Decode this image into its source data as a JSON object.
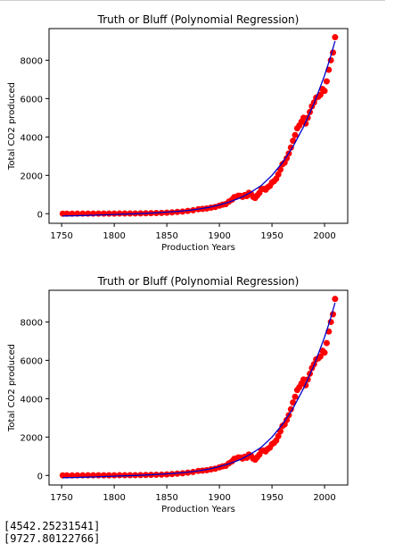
{
  "chart_data": [
    {
      "type": "scatter",
      "title": "Truth or Bluff (Polynomial Regression)",
      "xlabel": "Production Years",
      "ylabel": "Total CO2 produced",
      "xlim": [
        1738,
        2022
      ],
      "ylim": [
        -500,
        9650
      ],
      "xticks": [
        1750,
        1800,
        1850,
        1900,
        1950,
        2000
      ],
      "yticks": [
        0,
        2000,
        4000,
        6000,
        8000
      ],
      "grid": false,
      "series": [
        {
          "kind": "points",
          "color": "#ff0000",
          "x": [
            1751,
            1755,
            1760,
            1765,
            1770,
            1775,
            1780,
            1785,
            1790,
            1795,
            1800,
            1805,
            1810,
            1815,
            1820,
            1825,
            1830,
            1835,
            1840,
            1845,
            1850,
            1855,
            1860,
            1865,
            1870,
            1875,
            1880,
            1884,
            1888,
            1892,
            1896,
            1900,
            1903,
            1906,
            1909,
            1912,
            1914,
            1916,
            1918,
            1920,
            1922,
            1924,
            1926,
            1928,
            1930,
            1932,
            1934,
            1936,
            1938,
            1940,
            1942,
            1944,
            1946,
            1948,
            1950,
            1952,
            1954,
            1956,
            1958,
            1960,
            1962,
            1964,
            1966,
            1968,
            1970,
            1972,
            1974,
            1976,
            1978,
            1980,
            1982,
            1984,
            1986,
            1988,
            1990,
            1992,
            1994,
            1996,
            1998,
            2000,
            2002,
            2004,
            2006,
            2008,
            2010
          ],
          "y": [
            3,
            3,
            3,
            4,
            4,
            5,
            5,
            6,
            7,
            8,
            8,
            10,
            11,
            13,
            15,
            19,
            24,
            28,
            33,
            42,
            54,
            69,
            92,
            111,
            147,
            179,
            236,
            252,
            275,
            315,
            350,
            420,
            470,
            500,
            630,
            730,
            860,
            880,
            940,
            930,
            880,
            970,
            920,
            1090,
            1030,
            880,
            820,
            950,
            1080,
            1280,
            1300,
            1250,
            1380,
            1450,
            1630,
            1700,
            1820,
            2050,
            2300,
            2580,
            2660,
            2890,
            3140,
            3450,
            3800,
            4100,
            4450,
            4600,
            4790,
            5000,
            4700,
            5000,
            5300,
            5600,
            5800,
            6050,
            6100,
            6200,
            6500,
            6400,
            6900,
            7500,
            8000,
            8400,
            9200
          ]
        },
        {
          "kind": "line",
          "color": "#0000cc",
          "x": [
            1751,
            1760,
            1770,
            1780,
            1790,
            1800,
            1810,
            1820,
            1830,
            1840,
            1850,
            1860,
            1870,
            1880,
            1890,
            1900,
            1910,
            1920,
            1930,
            1940,
            1950,
            1960,
            1970,
            1980,
            1990,
            2000,
            2005,
            2010
          ],
          "y": [
            -120,
            -110,
            -95,
            -80,
            -60,
            -40,
            -20,
            0,
            20,
            50,
            80,
            120,
            170,
            240,
            330,
            460,
            620,
            830,
            1120,
            1480,
            2000,
            2660,
            3500,
            4540,
            5750,
            7200,
            8050,
            9000
          ]
        }
      ]
    },
    {
      "type": "scatter",
      "title": "Truth or Bluff (Polynomial Regression)",
      "xlabel": "Production Years",
      "ylabel": "Total CO2 produced",
      "xlim": [
        1738,
        2022
      ],
      "ylim": [
        -500,
        9650
      ],
      "xticks": [
        1750,
        1800,
        1850,
        1900,
        1950,
        2000
      ],
      "yticks": [
        0,
        2000,
        4000,
        6000,
        8000
      ],
      "grid": false,
      "series": [
        {
          "kind": "points",
          "color": "#ff0000",
          "x": [
            1751,
            1755,
            1760,
            1765,
            1770,
            1775,
            1780,
            1785,
            1790,
            1795,
            1800,
            1805,
            1810,
            1815,
            1820,
            1825,
            1830,
            1835,
            1840,
            1845,
            1850,
            1855,
            1860,
            1865,
            1870,
            1875,
            1880,
            1884,
            1888,
            1892,
            1896,
            1900,
            1903,
            1906,
            1909,
            1912,
            1914,
            1916,
            1918,
            1920,
            1922,
            1924,
            1926,
            1928,
            1930,
            1932,
            1934,
            1936,
            1938,
            1940,
            1942,
            1944,
            1946,
            1948,
            1950,
            1952,
            1954,
            1956,
            1958,
            1960,
            1962,
            1964,
            1966,
            1968,
            1970,
            1972,
            1974,
            1976,
            1978,
            1980,
            1982,
            1984,
            1986,
            1988,
            1990,
            1992,
            1994,
            1996,
            1998,
            2000,
            2002,
            2004,
            2006,
            2008,
            2010
          ],
          "y": [
            3,
            3,
            3,
            4,
            4,
            5,
            5,
            6,
            7,
            8,
            8,
            10,
            11,
            13,
            15,
            19,
            24,
            28,
            33,
            42,
            54,
            69,
            92,
            111,
            147,
            179,
            236,
            252,
            275,
            315,
            350,
            420,
            470,
            500,
            630,
            730,
            860,
            880,
            940,
            930,
            880,
            970,
            920,
            1090,
            1030,
            880,
            820,
            950,
            1080,
            1280,
            1300,
            1250,
            1380,
            1450,
            1630,
            1700,
            1820,
            2050,
            2300,
            2580,
            2660,
            2890,
            3140,
            3450,
            3800,
            4100,
            4450,
            4600,
            4790,
            5000,
            4700,
            5000,
            5300,
            5600,
            5800,
            6050,
            6100,
            6200,
            6500,
            6400,
            6900,
            7500,
            8000,
            8400,
            9200
          ]
        },
        {
          "kind": "line",
          "color": "#0000cc",
          "x": [
            1751,
            1760,
            1770,
            1780,
            1790,
            1800,
            1810,
            1820,
            1830,
            1840,
            1850,
            1860,
            1870,
            1880,
            1890,
            1900,
            1910,
            1920,
            1930,
            1940,
            1950,
            1960,
            1970,
            1980,
            1990,
            2000,
            2005,
            2010
          ],
          "y": [
            -120,
            -110,
            -95,
            -80,
            -60,
            -40,
            -20,
            0,
            20,
            50,
            80,
            120,
            170,
            240,
            330,
            460,
            620,
            830,
            1120,
            1480,
            2000,
            2660,
            3500,
            4540,
            5750,
            7200,
            8050,
            9000
          ]
        }
      ]
    }
  ],
  "output": {
    "line1": "[4542.25231541]",
    "line2": "[9727.80122766]"
  }
}
